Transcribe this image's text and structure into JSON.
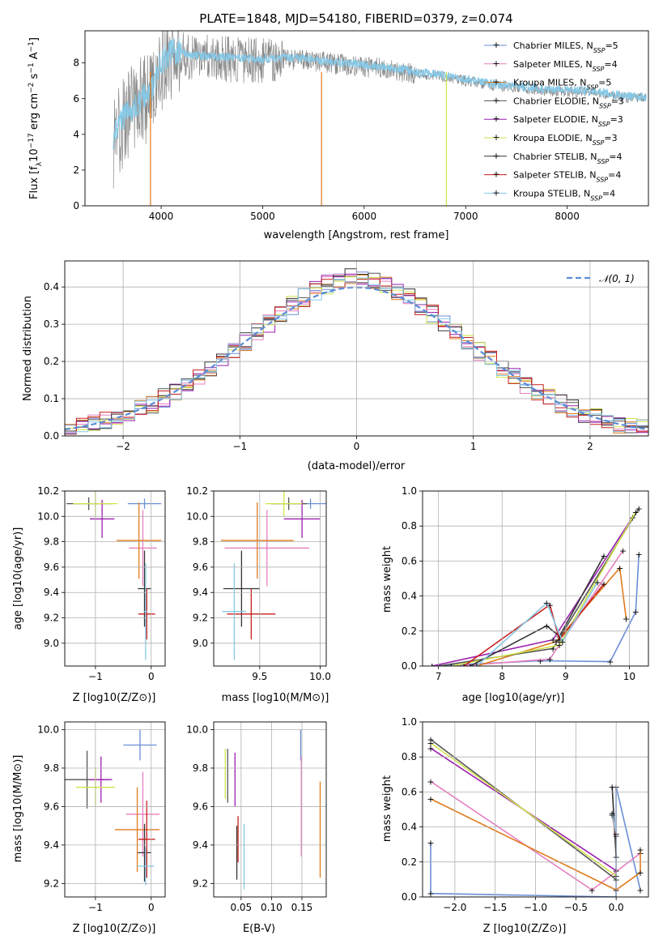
{
  "chart_data": [
    {
      "type": "line",
      "title": "PLATE=1848, MJD=54180, FIBERID=0379, z=0.074",
      "xlabel": "wavelength [Angstrom, rest frame]",
      "ylabel": "Flux [f_λ 10^-17 erg cm^-2 s^-1 A^-1]",
      "xlim": [
        3250,
        8800
      ],
      "ylim": [
        0,
        9.8
      ],
      "xticks": [
        4000,
        5000,
        6000,
        7000,
        8000
      ],
      "yticks": [
        0,
        2,
        4,
        6,
        8
      ],
      "legend_position": "right",
      "series": [
        {
          "name": "Chabrier MILES, N_SSP=5",
          "color": "#6a8fd6"
        },
        {
          "name": "Salpeter MILES, N_SSP=4",
          "color": "#e77fbf"
        },
        {
          "name": "Kroupa MILES, N_SSP=5",
          "color": "#e07b1f"
        },
        {
          "name": "Chabrier ELODIE, N_SSP=3",
          "color": "#555555"
        },
        {
          "name": "Salpeter ELODIE, N_SSP=3",
          "color": "#9b1fb0"
        },
        {
          "name": "Kroupa ELODIE, N_SSP=3",
          "color": "#d2e34a"
        },
        {
          "name": "Chabrier STELIB, N_SSP=4",
          "color": "#333333"
        },
        {
          "name": "Salpeter STELIB, N_SSP=4",
          "color": "#c81e1e"
        },
        {
          "name": "Kroupa STELIB, N_SSP=4",
          "color": "#86c8e6"
        }
      ],
      "data_spectrum": {
        "color": "#888888",
        "x": [
          3530,
          3600,
          3700,
          3800,
          3900,
          4000,
          4100,
          4200,
          4300,
          4500,
          4700,
          5000,
          5200,
          5500,
          5800,
          6000,
          6300,
          6500,
          6700,
          6900,
          7100,
          7300,
          7500,
          7700,
          7900,
          8100,
          8300,
          8500,
          8780
        ],
        "y": [
          3.5,
          4.5,
          5.2,
          5.8,
          6.2,
          7.8,
          8.5,
          8.5,
          8.3,
          8.3,
          8.2,
          8.1,
          8.2,
          8.1,
          7.9,
          7.8,
          7.6,
          7.4,
          7.3,
          7.1,
          6.9,
          6.7,
          6.6,
          6.5,
          6.4,
          6.4,
          6.3,
          6.1,
          6.0
        ]
      },
      "model_spectrum": {
        "x": [
          3530,
          3600,
          3700,
          3800,
          3900,
          4000,
          4100,
          4200,
          4300,
          4500,
          4700,
          5000,
          5200,
          5500,
          5800,
          6000,
          6300,
          6500,
          6700,
          6900,
          7100,
          7300,
          7500,
          7700,
          7900,
          8100,
          8300,
          8500,
          8780
        ],
        "y": [
          3.8,
          4.8,
          5.4,
          6.0,
          6.5,
          8.0,
          8.7,
          8.6,
          8.4,
          8.4,
          8.3,
          8.2,
          8.3,
          8.2,
          8.0,
          7.9,
          7.7,
          7.5,
          7.4,
          7.2,
          7.0,
          6.8,
          6.7,
          6.6,
          6.5,
          6.5,
          6.4,
          6.2,
          6.1
        ]
      },
      "dropout_lines": [
        {
          "x": 3895,
          "color": "#e07b1f"
        },
        {
          "x": 5580,
          "color": "#e07b1f"
        },
        {
          "x": 6810,
          "color": "#d2e34a"
        }
      ]
    },
    {
      "type": "line",
      "xlabel": "(data-model)/error",
      "ylabel": "Normed distribution",
      "xlim": [
        -2.5,
        2.5
      ],
      "ylim": [
        0,
        0.47
      ],
      "xticks": [
        -2,
        -1,
        0,
        1,
        2
      ],
      "yticks": [
        0.0,
        0.1,
        0.2,
        0.3,
        0.4
      ],
      "grid": true,
      "legend": "𝒩(0, 1)",
      "legend_position": "top-right",
      "gaussian": {
        "mean": 0,
        "sigma": 1,
        "color": "#5b8bd6"
      },
      "histogram_bin_width": 0.1
    },
    {
      "type": "scatter",
      "xlabel": "Z [log10(Z/Z⊙)]",
      "ylabel": "age  [log10(age/yr)]",
      "xlim": [
        -1.55,
        0.25
      ],
      "ylim": [
        8.82,
        10.2
      ],
      "xticks": [
        -1,
        0
      ],
      "yticks": [
        9.0,
        9.2,
        9.4,
        9.6,
        9.8,
        10.0,
        10.2
      ],
      "grid": true,
      "points": [
        {
          "series": "Chabrier MILES",
          "x": -0.12,
          "xerr": 0.3,
          "y": 10.1,
          "yerr": 0.04
        },
        {
          "series": "Salpeter MILES",
          "x": -0.15,
          "xerr": 0.25,
          "y": 9.75,
          "yerr": 0.3
        },
        {
          "series": "Kroupa MILES",
          "x": -0.22,
          "xerr": 0.4,
          "y": 9.81,
          "yerr": 0.3
        },
        {
          "series": "Chabrier ELODIE",
          "x": -1.12,
          "xerr": 0.4,
          "y": 10.1,
          "yerr": 0.05
        },
        {
          "series": "Salpeter ELODIE",
          "x": -0.88,
          "xerr": 0.22,
          "y": 9.98,
          "yerr": 0.15
        },
        {
          "series": "Kroupa ELODIE",
          "x": -1.0,
          "xerr": 0.4,
          "y": 10.1,
          "yerr": 0.1
        },
        {
          "series": "Chabrier STELIB",
          "x": -0.12,
          "xerr": 0.12,
          "y": 9.43,
          "yerr": 0.3
        },
        {
          "series": "Salpeter STELIB",
          "x": -0.08,
          "xerr": 0.15,
          "y": 9.23,
          "yerr": 0.2
        },
        {
          "series": "Kroupa STELIB",
          "x": -0.1,
          "xerr": 0.03,
          "y": 9.25,
          "yerr": 0.38
        }
      ]
    },
    {
      "type": "scatter",
      "xlabel": "mass [log10(M/M⊙)]",
      "ylabel": "",
      "xlim": [
        9.12,
        10.05
      ],
      "ylim": [
        8.82,
        10.2
      ],
      "xticks": [
        9.5,
        10.0
      ],
      "yticks": [
        9.0,
        9.2,
        9.4,
        9.6,
        9.8,
        10.0,
        10.2
      ],
      "grid": true,
      "points": [
        {
          "series": "Chabrier MILES",
          "x": 9.92,
          "xerr": 0.3,
          "y": 10.1,
          "yerr": 0.04
        },
        {
          "series": "Salpeter MILES",
          "x": 9.56,
          "xerr": 0.35,
          "y": 9.75,
          "yerr": 0.3
        },
        {
          "series": "Kroupa MILES",
          "x": 9.48,
          "xerr": 0.3,
          "y": 9.81,
          "yerr": 0.3
        },
        {
          "series": "Chabrier ELODIE",
          "x": 9.74,
          "xerr": 0.15,
          "y": 10.1,
          "yerr": 0.05
        },
        {
          "series": "Salpeter ELODIE",
          "x": 9.85,
          "xerr": 0.15,
          "y": 9.98,
          "yerr": 0.15
        },
        {
          "series": "Kroupa ELODIE",
          "x": 9.7,
          "xerr": 0.15,
          "y": 10.1,
          "yerr": 0.1
        },
        {
          "series": "Chabrier STELIB",
          "x": 9.35,
          "xerr": 0.15,
          "y": 9.43,
          "yerr": 0.3
        },
        {
          "series": "Salpeter STELIB",
          "x": 9.43,
          "xerr": 0.2,
          "y": 9.23,
          "yerr": 0.2
        },
        {
          "series": "Kroupa STELIB",
          "x": 9.29,
          "xerr": 0.1,
          "y": 9.25,
          "yerr": 0.38
        }
      ]
    },
    {
      "type": "line",
      "xlabel": "age  [log10(age/yr)]",
      "ylabel": "mass weight",
      "xlim": [
        6.75,
        10.3
      ],
      "ylim": [
        0,
        1.0
      ],
      "xticks": [
        7,
        8,
        9,
        10
      ],
      "yticks": [
        0.0,
        0.2,
        0.4,
        0.6,
        0.8,
        1.0
      ],
      "grid": true,
      "series": [
        {
          "name": "Chabrier MILES",
          "x": [
            6.9,
            8.6,
            9.7,
            10.1,
            10.15
          ],
          "y": [
            0.0,
            0.03,
            0.025,
            0.31,
            0.64
          ]
        },
        {
          "name": "Salpeter MILES",
          "x": [
            7.3,
            8.75,
            9.9
          ],
          "y": [
            0.0,
            0.04,
            0.66
          ]
        },
        {
          "name": "Kroupa MILES",
          "x": [
            7.6,
            8.85,
            9.85,
            9.95
          ],
          "y": [
            0.0,
            0.14,
            0.56,
            0.27
          ]
        },
        {
          "name": "Chabrier ELODIE",
          "x": [
            7.0,
            8.8,
            10.15
          ],
          "y": [
            0.0,
            0.1,
            0.9
          ]
        },
        {
          "name": "Salpeter ELODIE",
          "x": [
            6.9,
            8.8,
            10.05
          ],
          "y": [
            0.0,
            0.15,
            0.85
          ]
        },
        {
          "name": "Kroupa ELODIE",
          "x": [
            7.2,
            8.9,
            10.1
          ],
          "y": [
            0.0,
            0.12,
            0.88
          ]
        },
        {
          "name": "Chabrier STELIB",
          "x": [
            7.5,
            8.7,
            8.9,
            9.6
          ],
          "y": [
            0.0,
            0.23,
            0.17,
            0.63
          ]
        },
        {
          "name": "Salpeter STELIB",
          "x": [
            7.4,
            8.75,
            8.9,
            9.6
          ],
          "y": [
            0.0,
            0.35,
            0.15,
            0.47
          ]
        },
        {
          "name": "Kroupa STELIB",
          "x": [
            7.6,
            8.7,
            8.95,
            9.5
          ],
          "y": [
            0.0,
            0.36,
            0.14,
            0.48
          ]
        }
      ]
    },
    {
      "type": "scatter",
      "xlabel": "Z [log10(Z/Z⊙)]",
      "ylabel": "mass [log10(M/M⊙)]",
      "xlim": [
        -1.55,
        0.25
      ],
      "ylim": [
        9.13,
        10.04
      ],
      "xticks": [
        -1,
        0
      ],
      "yticks": [
        9.2,
        9.4,
        9.6,
        9.8,
        10.0
      ],
      "grid": true,
      "points": [
        {
          "series": "Chabrier MILES",
          "x": -0.2,
          "xerr": 0.3,
          "y": 9.92,
          "yerr": 0.08
        },
        {
          "series": "Salpeter MILES",
          "x": -0.15,
          "xerr": 0.3,
          "y": 9.56,
          "yerr": 0.22
        },
        {
          "series": "Kroupa MILES",
          "x": -0.25,
          "xerr": 0.4,
          "y": 9.48,
          "yerr": 0.22
        },
        {
          "series": "Chabrier ELODIE",
          "x": -1.15,
          "xerr": 0.4,
          "y": 9.74,
          "yerr": 0.15
        },
        {
          "series": "Salpeter ELODIE",
          "x": -0.9,
          "xerr": 0.2,
          "y": 9.74,
          "yerr": 0.12
        },
        {
          "series": "Kroupa ELODIE",
          "x": -1.0,
          "xerr": 0.35,
          "y": 9.7,
          "yerr": 0.1
        },
        {
          "series": "Chabrier STELIB",
          "x": -0.12,
          "xerr": 0.12,
          "y": 9.36,
          "yerr": 0.15
        },
        {
          "series": "Salpeter STELIB",
          "x": -0.08,
          "xerr": 0.15,
          "y": 9.43,
          "yerr": 0.2
        },
        {
          "series": "Kroupa STELIB",
          "x": -0.1,
          "xerr": 0.15,
          "y": 9.29,
          "yerr": 0.1
        }
      ]
    },
    {
      "type": "scatter",
      "xlabel": "E(B-V)",
      "ylabel": "",
      "xlim": [
        0.005,
        0.19
      ],
      "ylim": [
        9.13,
        10.04
      ],
      "xticks": [
        0.05,
        0.1,
        0.15
      ],
      "yticks": [
        9.2,
        9.4,
        9.6,
        9.8,
        10.0
      ],
      "grid": true,
      "points": [
        {
          "series": "Chabrier MILES",
          "x": 0.148,
          "xerr": 0.0,
          "y": 9.92,
          "yerr": 0.08
        },
        {
          "series": "Salpeter MILES",
          "x": 0.149,
          "xerr": 0.0,
          "y": 9.6,
          "yerr": 0.26
        },
        {
          "series": "Kroupa MILES",
          "x": 0.18,
          "xerr": 0.0,
          "y": 9.48,
          "yerr": 0.25
        },
        {
          "series": "Chabrier ELODIE",
          "x": 0.028,
          "xerr": 0.0,
          "y": 9.76,
          "yerr": 0.14
        },
        {
          "series": "Salpeter ELODIE",
          "x": 0.04,
          "xerr": 0.0,
          "y": 9.74,
          "yerr": 0.14
        },
        {
          "series": "Kroupa ELODIE",
          "x": 0.024,
          "xerr": 0.0,
          "y": 9.77,
          "yerr": 0.13
        },
        {
          "series": "Chabrier STELIB",
          "x": 0.043,
          "xerr": 0.0,
          "y": 9.36,
          "yerr": 0.14
        },
        {
          "series": "Salpeter STELIB",
          "x": 0.045,
          "xerr": 0.0,
          "y": 9.43,
          "yerr": 0.12
        },
        {
          "series": "Kroupa STELIB",
          "x": 0.055,
          "xerr": 0.0,
          "y": 9.34,
          "yerr": 0.17
        }
      ]
    },
    {
      "type": "line",
      "xlabel": "Z [log10(Z/Z⊙)]",
      "ylabel": "mass weight",
      "xlim": [
        -2.4,
        0.4
      ],
      "ylim": [
        0,
        1.0
      ],
      "xticks": [
        -2.0,
        -1.5,
        -1.0,
        -0.5,
        0.0
      ],
      "yticks": [
        0.0,
        0.2,
        0.4,
        0.6,
        0.8,
        1.0
      ],
      "grid": true,
      "series": [
        {
          "name": "Chabrier MILES",
          "x": [
            -2.3,
            -2.3,
            0.0,
            0.0,
            0.3
          ],
          "y": [
            0.31,
            0.02,
            0.0,
            0.63,
            0.04
          ]
        },
        {
          "name": "Salpeter MILES",
          "x": [
            -2.3,
            -0.3,
            0.3
          ],
          "y": [
            0.66,
            0.04,
            0.25
          ]
        },
        {
          "name": "Kroupa MILES",
          "x": [
            -2.3,
            0.0,
            0.3,
            0.3
          ],
          "y": [
            0.56,
            0.04,
            0.14,
            0.27
          ]
        },
        {
          "name": "Chabrier ELODIE",
          "x": [
            -2.3,
            0.0
          ],
          "y": [
            0.9,
            0.1
          ]
        },
        {
          "name": "Salpeter ELODIE",
          "x": [
            -2.3,
            0.0
          ],
          "y": [
            0.85,
            0.15
          ]
        },
        {
          "name": "Kroupa ELODIE",
          "x": [
            -2.3,
            0.0
          ],
          "y": [
            0.88,
            0.12
          ]
        },
        {
          "name": "Chabrier STELIB",
          "x": [
            -0.05,
            0.0
          ],
          "y": [
            0.63,
            0.23
          ]
        },
        {
          "name": "Salpeter STELIB",
          "x": [
            -0.05,
            0.0
          ],
          "y": [
            0.47,
            0.35
          ]
        },
        {
          "name": "Kroupa STELIB",
          "x": [
            -0.05,
            0.0
          ],
          "y": [
            0.48,
            0.36
          ]
        }
      ]
    }
  ]
}
